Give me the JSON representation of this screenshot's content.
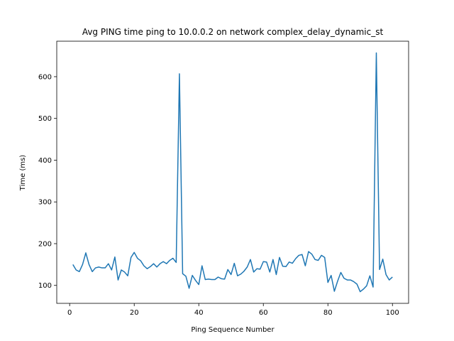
{
  "chart_data": {
    "type": "line",
    "title": "Avg PING time ping to 10.0.0.2 on network complex_delay_dynamic_st",
    "xlabel": "Ping Sequence Number",
    "ylabel": "Time (ms)",
    "xlim": [
      -4,
      105
    ],
    "ylim": [
      57,
      685
    ],
    "xticks": [
      0,
      20,
      40,
      60,
      80,
      100
    ],
    "yticks": [
      100,
      200,
      300,
      400,
      500,
      600
    ],
    "grid": false,
    "line_color": "#1f77b4",
    "series": [
      {
        "x": [
          1,
          2,
          3,
          4,
          5,
          6,
          7,
          8,
          9,
          10,
          11,
          12,
          13,
          14,
          15,
          16,
          17,
          18,
          19,
          20,
          21,
          22,
          23,
          24,
          25,
          26,
          27,
          28,
          29,
          30,
          31,
          32,
          33,
          34,
          35,
          36,
          37,
          38,
          39,
          40,
          41,
          42,
          43,
          44,
          45,
          46,
          47,
          48,
          49,
          50,
          51,
          52,
          53,
          54,
          55,
          56,
          57,
          58,
          59,
          60,
          61,
          62,
          63,
          64,
          65,
          66,
          67,
          68,
          69,
          70,
          71,
          72,
          73,
          74,
          75,
          76,
          77,
          78,
          79,
          80,
          81,
          82,
          83,
          84,
          85,
          86,
          87,
          88,
          89,
          90,
          91,
          92,
          93,
          94,
          95,
          96,
          97,
          98,
          99,
          100
        ],
        "y": [
          150,
          137,
          133,
          150,
          178,
          150,
          133,
          142,
          144,
          142,
          142,
          152,
          137,
          168,
          113,
          137,
          132,
          123,
          167,
          179,
          165,
          159,
          147,
          140,
          145,
          152,
          144,
          152,
          157,
          152,
          160,
          165,
          155,
          607,
          128,
          122,
          93,
          124,
          112,
          102,
          147,
          114,
          115,
          114,
          114,
          120,
          116,
          115,
          138,
          126,
          153,
          123,
          127,
          134,
          144,
          162,
          132,
          140,
          139,
          157,
          156,
          132,
          162,
          126,
          167,
          146,
          145,
          156,
          153,
          164,
          172,
          174,
          147,
          181,
          175,
          162,
          160,
          172,
          167,
          107,
          124,
          86,
          110,
          131,
          117,
          113,
          113,
          109,
          103,
          85,
          91,
          99,
          123,
          96,
          657,
          138,
          163,
          126,
          113,
          120
        ]
      }
    ]
  }
}
